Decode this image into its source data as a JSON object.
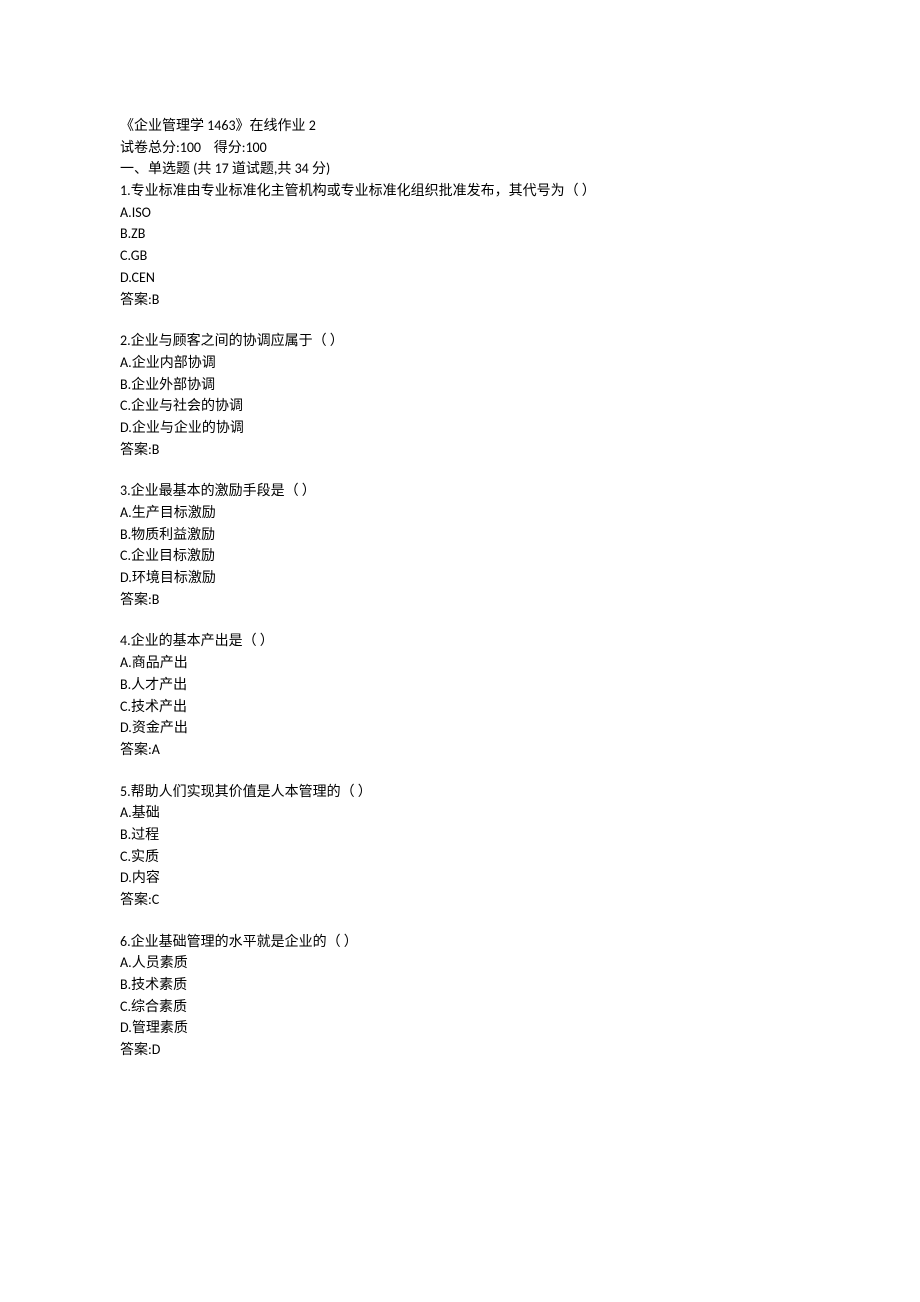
{
  "header": {
    "title": "《企业管理学 1463》在线作业 2",
    "score_line": "试卷总分:100    得分:100",
    "section": "一、单选题 (共 17 道试题,共 34 分)"
  },
  "questions": [
    {
      "stem": "1.专业标准由专业标准化主管机构或专业标准化组织批准发布，其代号为（ ）",
      "options": [
        "A.ISO",
        "B.ZB",
        "C.GB",
        "D.CEN"
      ],
      "answer": "答案:B"
    },
    {
      "stem": "2.企业与顾客之间的协调应属于（ ）",
      "options": [
        "A.企业内部协调",
        "B.企业外部协调",
        "C.企业与社会的协调",
        "D.企业与企业的协调"
      ],
      "answer": "答案:B"
    },
    {
      "stem": "3.企业最基本的激励手段是（ ）",
      "options": [
        "A.生产目标激励",
        "B.物质利益激励",
        "C.企业目标激励",
        "D.环境目标激励"
      ],
      "answer": "答案:B"
    },
    {
      "stem": "4.企业的基本产出是（ ）",
      "options": [
        "A.商品产出",
        "B.人才产出",
        "C.技术产出",
        "D.资金产出"
      ],
      "answer": "答案:A"
    },
    {
      "stem": "5.帮助人们实现其价值是人本管理的（ ）",
      "options": [
        "A.基础",
        "B.过程",
        "C.实质",
        "D.内容"
      ],
      "answer": "答案:C"
    },
    {
      "stem": "6.企业基础管理的水平就是企业的（ ）",
      "options": [
        "A.人员素质",
        "B.技术素质",
        "C.综合素质",
        "D.管理素质"
      ],
      "answer": "答案:D"
    }
  ]
}
